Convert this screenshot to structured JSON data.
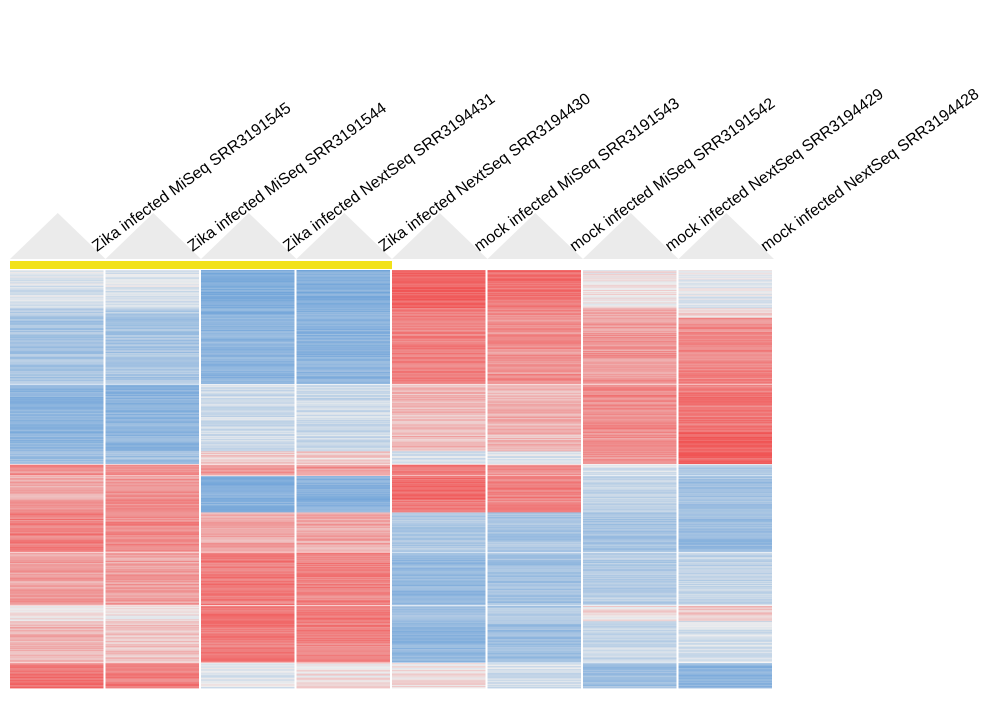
{
  "chart_data": {
    "type": "heatmap",
    "title": "",
    "xlabel": "",
    "ylabel": "",
    "columns": [
      "Zika infected MiSeq SRR3191545",
      "Zika infected MiSeq SRR3191544",
      "Zika infected NextSeq SRR3194431",
      "Zika infected NextSeq SRR3194430",
      "mock infected MiSeq SRR3191543",
      "mock infected MiSeq SRR3191542",
      "mock infected NextSeq SRR3194429",
      "mock infected NextSeq SRR3194428"
    ],
    "selected_columns": [
      0,
      1,
      2,
      3
    ],
    "value_range": [
      -1,
      1
    ],
    "colors": {
      "low": "#6fa3d9",
      "mid": "#eeeeee",
      "high": "#f05555",
      "selection_bar": "#f2e21a",
      "header_triangle": "#ebebeb"
    },
    "row_blocks": [
      {
        "rows": 40,
        "values": [
          -0.15,
          -0.15,
          -0.85,
          -0.85,
          0.9,
          0.8,
          0.05,
          -0.1
        ]
      },
      {
        "rows": 10,
        "values": [
          -0.45,
          -0.45,
          -0.8,
          -0.8,
          0.7,
          0.6,
          0.4,
          0.1
        ]
      },
      {
        "rows": 70,
        "values": [
          -0.55,
          -0.55,
          -0.75,
          -0.75,
          0.7,
          0.6,
          0.55,
          0.65
        ]
      },
      {
        "rows": 50,
        "values": [
          -0.75,
          -0.75,
          -0.25,
          -0.25,
          0.35,
          0.4,
          0.65,
          0.75
        ]
      },
      {
        "rows": 20,
        "values": [
          -0.75,
          -0.75,
          -0.25,
          -0.25,
          0.35,
          0.35,
          0.6,
          0.9
        ]
      },
      {
        "rows": 14,
        "values": [
          -0.65,
          -0.6,
          0.2,
          0.2,
          -0.2,
          -0.1,
          0.6,
          0.9
        ]
      },
      {
        "rows": 12,
        "values": [
          0.6,
          0.6,
          0.55,
          0.55,
          0.75,
          0.65,
          -0.2,
          -0.5
        ]
      },
      {
        "rows": 24,
        "values": [
          0.45,
          0.55,
          -0.8,
          -0.8,
          0.85,
          0.7,
          -0.35,
          -0.6
        ]
      },
      {
        "rows": 14,
        "values": [
          0.55,
          0.6,
          -0.8,
          -0.8,
          0.7,
          0.7,
          -0.4,
          -0.6
        ]
      },
      {
        "rows": 42,
        "values": [
          0.7,
          0.65,
          0.45,
          0.45,
          -0.5,
          -0.55,
          -0.55,
          -0.65
        ]
      },
      {
        "rows": 56,
        "values": [
          0.5,
          0.5,
          0.75,
          0.7,
          -0.7,
          -0.6,
          -0.45,
          -0.35
        ]
      },
      {
        "rows": 16,
        "values": [
          0.05,
          0.05,
          0.8,
          0.75,
          -0.6,
          -0.5,
          0.1,
          0.25
        ]
      },
      {
        "rows": 44,
        "values": [
          0.35,
          0.3,
          0.75,
          0.7,
          -0.75,
          -0.6,
          -0.3,
          -0.2
        ]
      },
      {
        "rows": 26,
        "values": [
          0.8,
          0.75,
          -0.1,
          0.05,
          0.1,
          -0.2,
          -0.6,
          -0.75
        ]
      }
    ]
  }
}
